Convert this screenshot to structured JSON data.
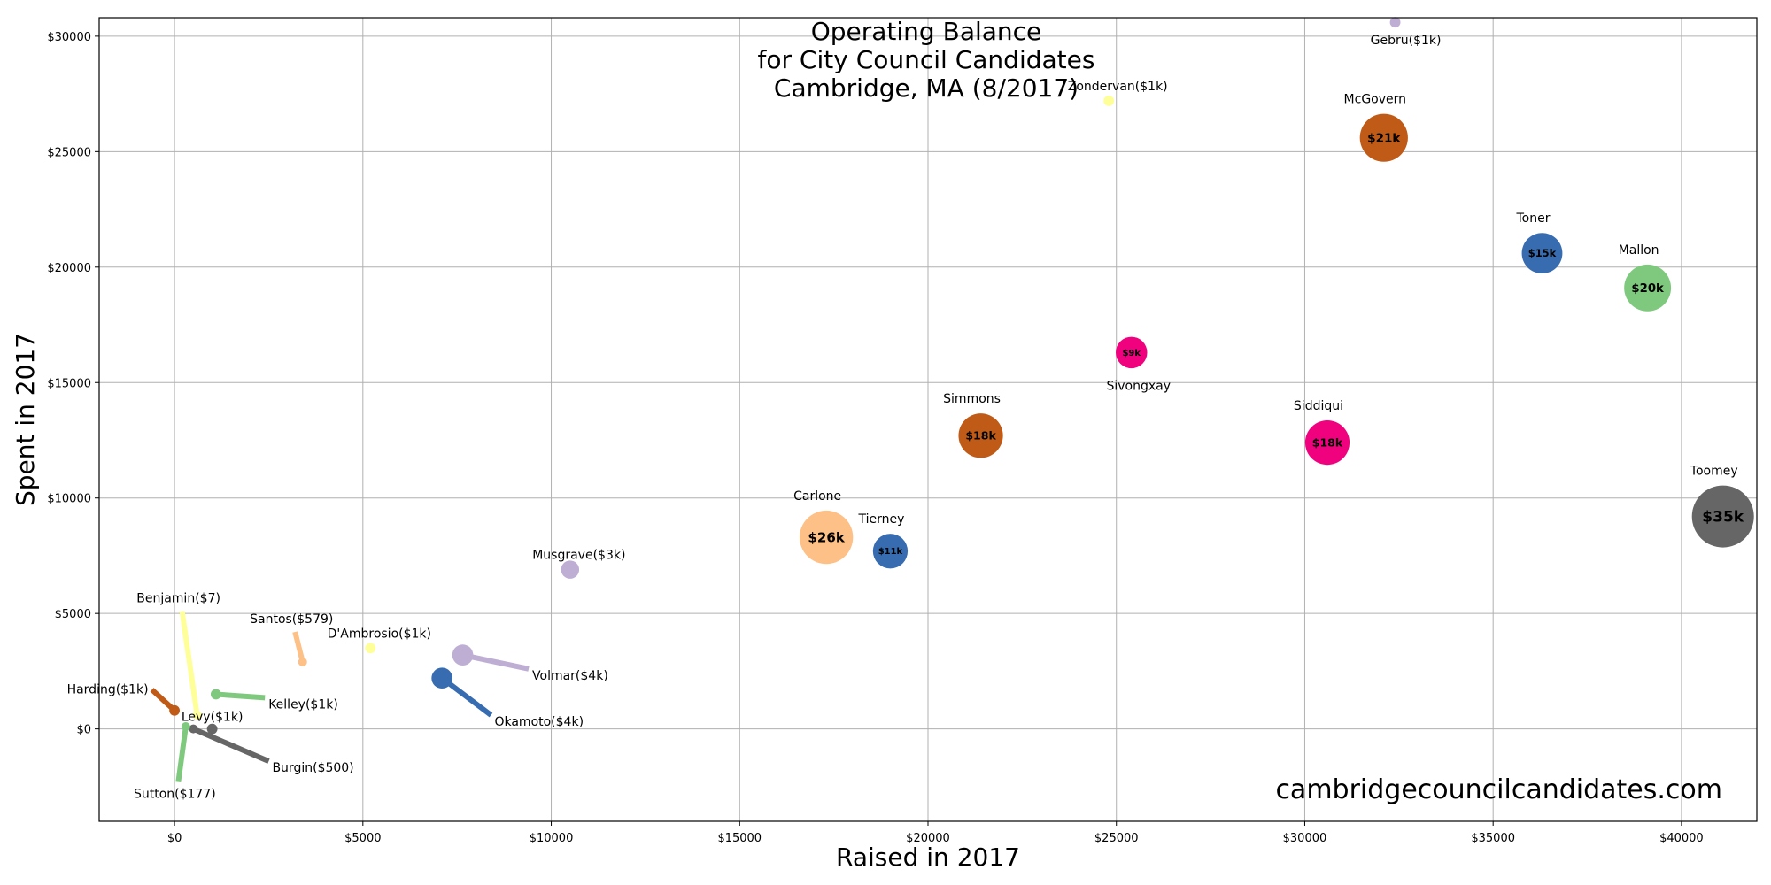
{
  "chart_data": {
    "type": "scatter",
    "title_lines": [
      "Operating Balance",
      "for City Council Candidates",
      "Cambridge, MA (8/2017)"
    ],
    "xlabel": "Raised in 2017",
    "ylabel": "Spent in 2017",
    "xlim": [
      -2000,
      42000
    ],
    "ylim": [
      -4000,
      30800
    ],
    "x_ticks": [
      0,
      5000,
      10000,
      15000,
      20000,
      25000,
      30000,
      35000,
      40000
    ],
    "x_tick_labels": [
      "$0",
      "$5000",
      "$10000",
      "$15000",
      "$20000",
      "$25000",
      "$30000",
      "$35000",
      "$40000"
    ],
    "y_ticks": [
      0,
      5000,
      10000,
      15000,
      20000,
      25000,
      30000
    ],
    "y_tick_labels": [
      "$0",
      "$5000",
      "$10000",
      "$15000",
      "$20000",
      "$25000",
      "$30000"
    ],
    "grid": true,
    "watermark": "cambridgecouncilcandidates.com",
    "points": [
      {
        "name": "Gebru",
        "label": "Gebru($1k)",
        "x": 32400,
        "y": 30600,
        "balance": 1000,
        "color": "#beaed4"
      },
      {
        "name": "Zondervan",
        "label": "Zondervan($1k)",
        "x": 24800,
        "y": 27200,
        "balance": 1000,
        "color": "#ffff99"
      },
      {
        "name": "McGovern",
        "label": "McGovern",
        "balance_label": "$21k",
        "x": 32100,
        "y": 25600,
        "balance": 21000,
        "color": "#bf5b17"
      },
      {
        "name": "Toner",
        "label": "Toner",
        "balance_label": "$15k",
        "x": 36300,
        "y": 20600,
        "balance": 15000,
        "color": "#386cb0"
      },
      {
        "name": "Mallon",
        "label": "Mallon",
        "balance_label": "$20k",
        "x": 39100,
        "y": 19100,
        "balance": 20000,
        "color": "#7fc97f"
      },
      {
        "name": "Sivongxay",
        "label": "Sivongxay",
        "balance_label": "$9k",
        "x": 25400,
        "y": 16300,
        "balance": 9000,
        "color": "#f0027f"
      },
      {
        "name": "Simmons",
        "label": "Simmons",
        "balance_label": "$18k",
        "x": 21400,
        "y": 12700,
        "balance": 18000,
        "color": "#bf5b17"
      },
      {
        "name": "Siddiqui",
        "label": "Siddiqui",
        "balance_label": "$18k",
        "x": 30600,
        "y": 12400,
        "balance": 18000,
        "color": "#f0027f"
      },
      {
        "name": "Toomey",
        "label": "Toomey",
        "balance_label": "$35k",
        "x": 41100,
        "y": 9200,
        "balance": 35000,
        "color": "#666666"
      },
      {
        "name": "Carlone",
        "label": "Carlone",
        "balance_label": "$26k",
        "x": 17300,
        "y": 8300,
        "balance": 26000,
        "color": "#fdc086"
      },
      {
        "name": "Tierney",
        "label": "Tierney",
        "balance_label": "$11k",
        "x": 19000,
        "y": 7700,
        "balance": 11000,
        "color": "#386cb0"
      },
      {
        "name": "Musgrave",
        "label": "Musgrave($3k)",
        "x": 10500,
        "y": 6900,
        "balance": 3000,
        "color": "#beaed4"
      },
      {
        "name": "D'Ambrosio",
        "label": "D'Ambrosio($1k)",
        "x": 5200,
        "y": 3500,
        "balance": 1000,
        "color": "#ffff99"
      },
      {
        "name": "Volmar",
        "label": "Volmar($4k)",
        "x": 7650,
        "y": 3200,
        "balance": 4000,
        "color": "#beaed4",
        "arrow_to": [
          9400,
          2600
        ]
      },
      {
        "name": "Okamoto",
        "label": "Okamoto($4k)",
        "x": 7100,
        "y": 2200,
        "balance": 4000,
        "color": "#386cb0",
        "arrow_to": [
          8400,
          600
        ]
      },
      {
        "name": "Santos",
        "label": "Santos($579)",
        "x": 3400,
        "y": 2900,
        "balance": 579,
        "color": "#fdc086",
        "arrow_to": [
          3200,
          4200
        ]
      },
      {
        "name": "Kelley",
        "label": "Kelley($1k)",
        "x": 1100,
        "y": 1500,
        "balance": 1000,
        "color": "#7fc97f",
        "arrow_to": [
          2400,
          1350
        ]
      },
      {
        "name": "Harding",
        "label": "Harding($1k)",
        "x": 0,
        "y": 800,
        "balance": 1000,
        "color": "#bf5b17",
        "arrow_to": [
          -600,
          1700
        ]
      },
      {
        "name": "Benjamin",
        "label": "Benjamin($7)",
        "x": 600,
        "y": 600,
        "balance": 7,
        "color": "#ffff99",
        "arrow_to": [
          200,
          5100
        ]
      },
      {
        "name": "Levy",
        "label": "Levy($1k)",
        "x": 1000,
        "y": 0,
        "balance": 1000,
        "color": "#666666"
      },
      {
        "name": "Burgin",
        "label": "Burgin($500)",
        "x": 500,
        "y": 0,
        "balance": 500,
        "color": "#666666",
        "arrow_to": [
          2500,
          -1400
        ]
      },
      {
        "name": "Sutton",
        "label": "Sutton($177)",
        "x": 300,
        "y": 100,
        "balance": 177,
        "color": "#7fc97f",
        "arrow_to": [
          100,
          -2300
        ]
      }
    ]
  }
}
